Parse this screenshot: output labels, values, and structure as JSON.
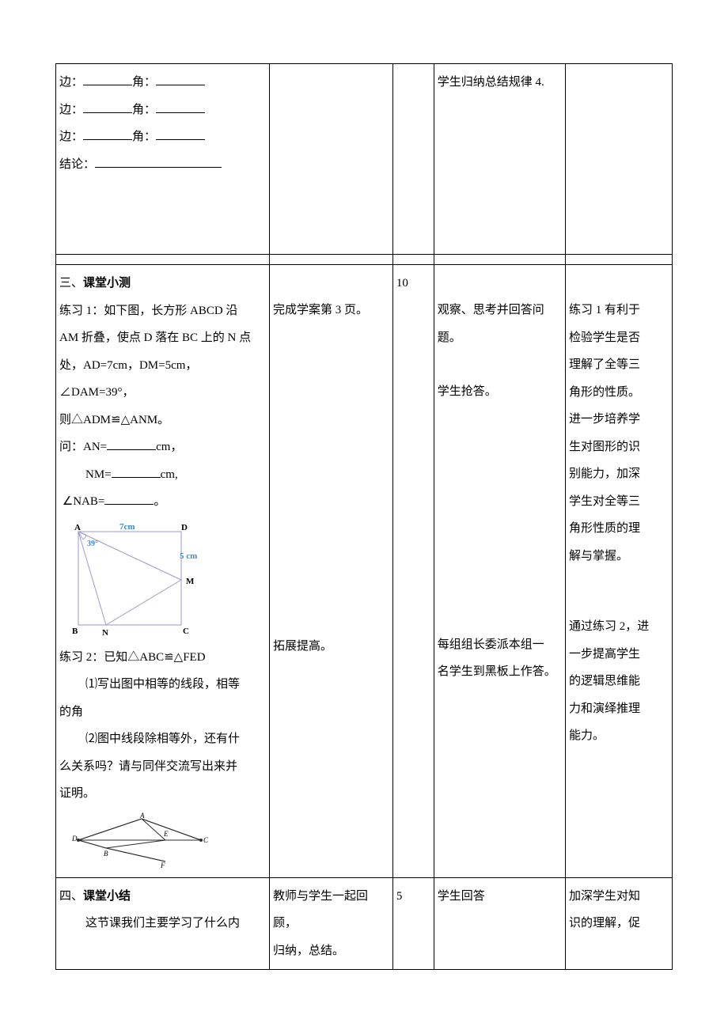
{
  "r1": {
    "c1": {
      "line1_a": "边：",
      "line1_b": "角：",
      "line2_a": "边：",
      "line2_b": "角：",
      "line3_a": "边：",
      "line3_b": "角：",
      "line4": "结论："
    },
    "c4": "学生归纳总结规律 4.",
    "c2": "",
    "c3": "",
    "c5": ""
  },
  "r3": {
    "c1": {
      "heading": "三、课堂小测",
      "p1_l1": "练习 1：如下图，长方形 ABCD 沿",
      "p1_l2": "AM 折叠，使点 D 落在 BC 上的 N 点",
      "p1_l3": "处，AD=7cm，DM=5cm，∠DAM=39°，",
      "p1_l4": "则△ADM≌△ANM。",
      "q1_a": "问：AN=",
      "q1_b": "cm，",
      "q2_a": "NM=",
      "q2_b": "cm,",
      "q3_a": "∠NAB=",
      "q3_b": "。",
      "fig1": {
        "A": "A",
        "D": "D",
        "M": "M",
        "C": "C",
        "N": "N",
        "B": "B",
        "seven": "7cm",
        "thirtynine": "39°",
        "five": "5 cm",
        "stroke": "#9a9ad4",
        "text": "#3b8bd0"
      },
      "p2_l1": "练习 2：已知△ABC≌△FED",
      "p2_l2": "⑴写出图中相等的线段，相等",
      "p2_l3": "的角",
      "p2_l4": "⑵图中线段除相等外，还有什",
      "p2_l5": "么关系吗？请与同伴交流写出来并",
      "p2_l6": "证明。",
      "fig2": {
        "A": "A",
        "B": "B",
        "C": "C",
        "D": "D",
        "E": "E",
        "F": "F",
        "stroke": "#2b2b2b"
      }
    },
    "c2": {
      "t1": "完成学案第 3 页。",
      "t2": "拓展提高。"
    },
    "c3": "10",
    "c4": {
      "t1": "观察、思考并回答问",
      "t2": "题。",
      "t3": "学生抢答。",
      "t4": "每组组长委派本组一",
      "t5": "名学生到黑板上作答。"
    },
    "c5": {
      "t1": "练习 1 有利于",
      "t2": "检验学生是否",
      "t3": "理解了全等三",
      "t4": "角形的性质。",
      "t5": "进一步培养学",
      "t6": "生对图形的识",
      "t7": "别能力，加深",
      "t8": "学生对全等三",
      "t9": "角形性质的理",
      "t10": "解与掌握。",
      "u1": "通过练习 2，进",
      "u2": "一步提高学生",
      "u3": "的逻辑思维能",
      "u4": "力和演绎推理",
      "u5": "能力。"
    }
  },
  "r4": {
    "c1": {
      "heading": "四、课堂小结",
      "line": "这节课我们主要学习了什么内"
    },
    "c2": {
      "l1": "教师与学生一起回顾，",
      "l2": "归纳，总结。"
    },
    "c3": "5",
    "c4": "学生回答",
    "c5": {
      "l1": "加深学生对知",
      "l2": "识的理解，促"
    }
  }
}
